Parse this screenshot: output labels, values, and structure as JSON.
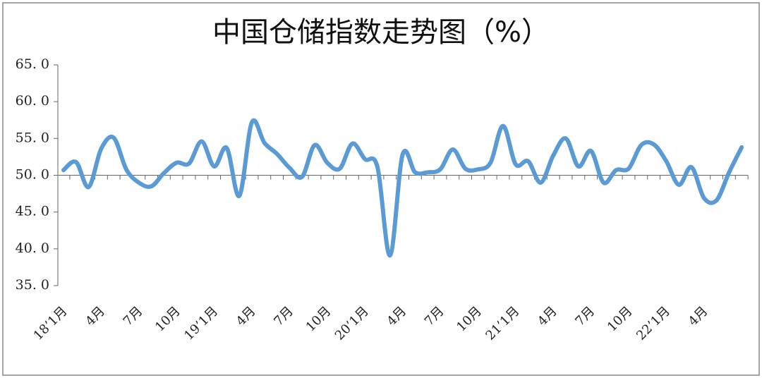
{
  "chart_data": {
    "type": "line",
    "title": "中国仓储指数走势图（%）",
    "categories": [
      "18’1月",
      null,
      null,
      "4月",
      null,
      null,
      "7月",
      null,
      null,
      "10月",
      null,
      null,
      "19’1月",
      null,
      null,
      "4月",
      null,
      null,
      "7月",
      null,
      null,
      "10月",
      null,
      null,
      "20’1月",
      null,
      null,
      "4月",
      null,
      null,
      "7月",
      null,
      null,
      "10月",
      null,
      null,
      "21’1月",
      null,
      null,
      "4月",
      null,
      null,
      "7月",
      null,
      null,
      "10月",
      null,
      null,
      "22’1月",
      null,
      null,
      "4月",
      null,
      null,
      null
    ],
    "series": [
      {
        "name": "中国仓储指数",
        "color": "#5b9bd5",
        "values": [
          50.7,
          51.8,
          48.4,
          53.6,
          55.1,
          50.8,
          49.0,
          48.5,
          50.3,
          51.7,
          51.6,
          54.6,
          51.2,
          53.7,
          47.2,
          57.2,
          54.4,
          52.9,
          51.0,
          49.8,
          54.1,
          51.7,
          50.9,
          54.3,
          52.2,
          51.1,
          39.1,
          52.8,
          50.4,
          50.4,
          50.8,
          53.5,
          50.9,
          50.8,
          51.7,
          56.7,
          51.5,
          51.9,
          49.0,
          52.7,
          55.0,
          51.2,
          53.3,
          49.0,
          50.7,
          50.9,
          54.1,
          54.2,
          51.9,
          48.7,
          51.1,
          46.9,
          46.6,
          50.4,
          53.8
        ]
      }
    ],
    "ylim": [
      35,
      65
    ],
    "yticks": [
      {
        "value": 35,
        "label": "35. 0"
      },
      {
        "value": 40,
        "label": "40. 0"
      },
      {
        "value": 45,
        "label": "45. 0"
      },
      {
        "value": 50,
        "label": "50. 0"
      },
      {
        "value": 55,
        "label": "55. 0"
      },
      {
        "value": 60,
        "label": "60. 0"
      },
      {
        "value": 65,
        "label": "65. 0"
      }
    ],
    "x_axis_at": 50
  }
}
